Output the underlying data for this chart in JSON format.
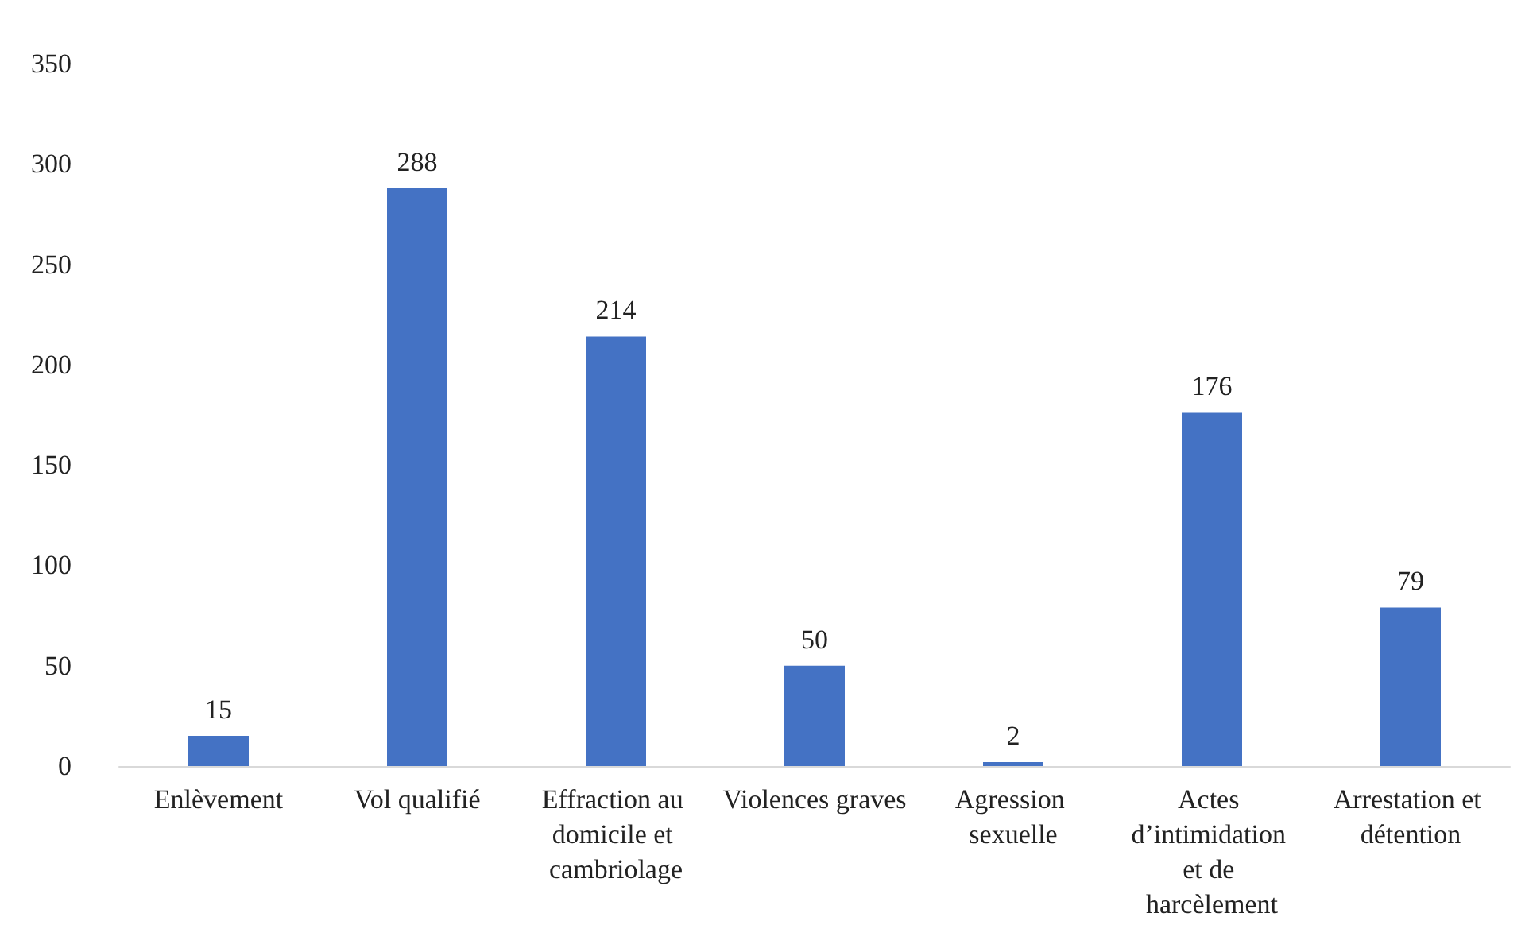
{
  "chart_data": {
    "type": "bar",
    "categories": [
      "Enlèvement",
      "Vol qualifié",
      "Effraction au domicile et cambriolage",
      "Violences graves",
      "Agression sexuelle",
      "Actes d’intimidation et de harcèlement",
      "Arrestation et détention"
    ],
    "values": [
      15,
      288,
      214,
      50,
      2,
      176,
      79
    ],
    "color": "#4472c4",
    "ylim": [
      0,
      350
    ],
    "yticks": [
      0,
      50,
      100,
      150,
      200,
      250,
      300,
      350
    ],
    "grid": false,
    "data_labels": true
  }
}
